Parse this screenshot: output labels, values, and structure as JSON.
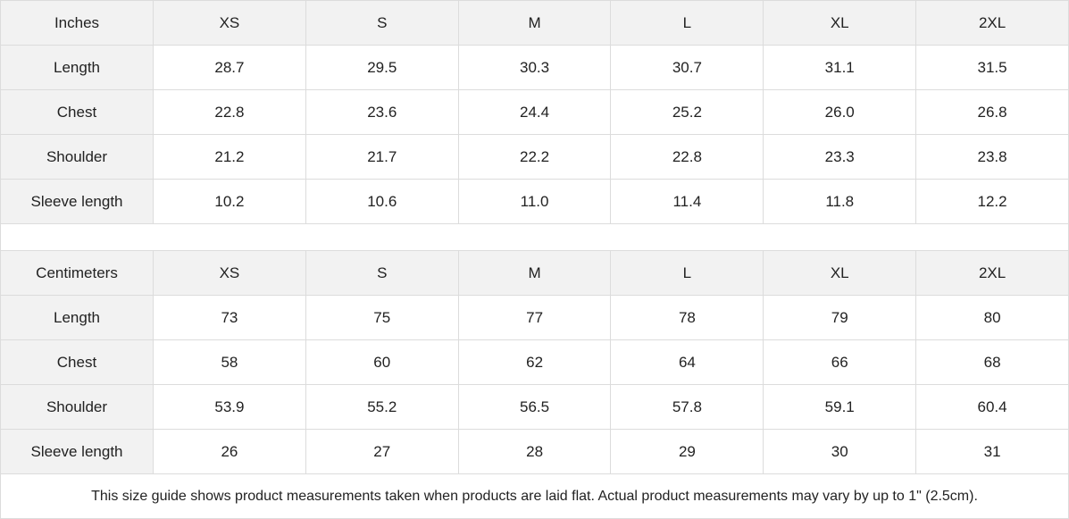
{
  "tables": [
    {
      "unit": "Inches",
      "sizes": [
        "XS",
        "S",
        "M",
        "L",
        "XL",
        "2XL"
      ],
      "rows": [
        {
          "label": "Length",
          "values": [
            "28.7",
            "29.5",
            "30.3",
            "30.7",
            "31.1",
            "31.5"
          ]
        },
        {
          "label": "Chest",
          "values": [
            "22.8",
            "23.6",
            "24.4",
            "25.2",
            "26.0",
            "26.8"
          ]
        },
        {
          "label": "Shoulder",
          "values": [
            "21.2",
            "21.7",
            "22.2",
            "22.8",
            "23.3",
            "23.8"
          ]
        },
        {
          "label": "Sleeve length",
          "values": [
            "10.2",
            "10.6",
            "11.0",
            "11.4",
            "11.8",
            "12.2"
          ]
        }
      ]
    },
    {
      "unit": "Centimeters",
      "sizes": [
        "XS",
        "S",
        "M",
        "L",
        "XL",
        "2XL"
      ],
      "rows": [
        {
          "label": "Length",
          "values": [
            "73",
            "75",
            "77",
            "78",
            "79",
            "80"
          ]
        },
        {
          "label": "Chest",
          "values": [
            "58",
            "60",
            "62",
            "64",
            "66",
            "68"
          ]
        },
        {
          "label": "Shoulder",
          "values": [
            "53.9",
            "55.2",
            "56.5",
            "57.8",
            "59.1",
            "60.4"
          ]
        },
        {
          "label": "Sleeve length",
          "values": [
            "26",
            "27",
            "28",
            "29",
            "30",
            "31"
          ]
        }
      ]
    }
  ],
  "note": "This size guide shows product measurements taken when products are laid flat.  Actual product measurements may vary by up to 1\" (2.5cm).",
  "colors": {
    "header_bg": "#f2f2f2",
    "border": "#dcdcdc"
  }
}
